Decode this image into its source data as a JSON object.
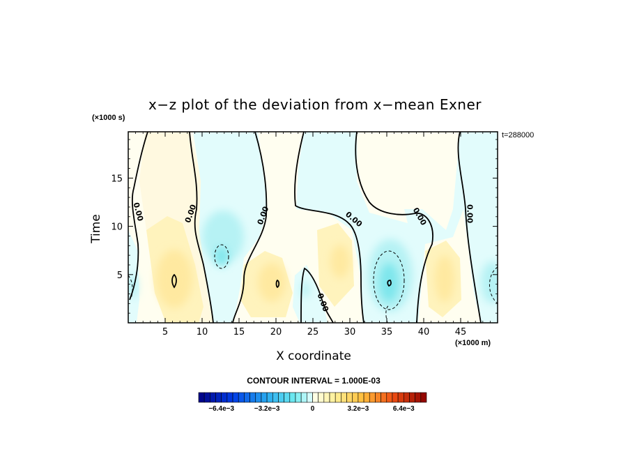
{
  "title": "x−z plot of the deviation from x−mean Exner",
  "y_unit": "(×1000 s)",
  "x_unit": "(×1000 m)",
  "time_tag": "t=288000",
  "contour_interval": "CONTOUR INTERVAL = 1.000E-03",
  "chart_data": {
    "type": "heatmap",
    "title": "x−z plot of the deviation from x−mean Exner",
    "xlabel": "X coordinate",
    "ylabel": "Time",
    "x_unit": "(×1000 m)",
    "y_unit": "(×1000 s)",
    "xlim": [
      0,
      50
    ],
    "ylim": [
      0,
      19.8
    ],
    "x_ticks": [
      5,
      10,
      15,
      20,
      25,
      30,
      35,
      40,
      45
    ],
    "y_ticks": [
      5,
      10,
      15
    ],
    "x_tick_labels": [
      "5",
      "10",
      "15",
      "20",
      "25",
      "30",
      "35",
      "40",
      "45"
    ],
    "y_tick_labels": [
      "5",
      "10",
      "15"
    ],
    "contour_labels": [
      {
        "text": "0.00",
        "x": 1.3,
        "y": 11.5,
        "angle": 75
      },
      {
        "text": "0.00",
        "x": 8.5,
        "y": 11.3,
        "angle": -70
      },
      {
        "text": "0.00",
        "x": 18.3,
        "y": 11.1,
        "angle": -70
      },
      {
        "text": "0.00",
        "x": 30.5,
        "y": 10.7,
        "angle": 40
      },
      {
        "text": "0.00",
        "x": 26.3,
        "y": 2.1,
        "angle": 70
      },
      {
        "text": "0.00",
        "x": 39.4,
        "y": 11.0,
        "angle": 60
      },
      {
        "text": "0.00",
        "x": 46.2,
        "y": 11.3,
        "angle": 90
      }
    ],
    "colorbar": {
      "min": -0.008,
      "max": 0.008,
      "levels": 40,
      "tick_labels": [
        "−6.4e−3",
        "−3.2e−3",
        "0",
        "3.2e−3",
        "6.4e−3"
      ],
      "tick_values": [
        -0.0064,
        -0.0032,
        0,
        0.0032,
        0.0064
      ]
    }
  }
}
